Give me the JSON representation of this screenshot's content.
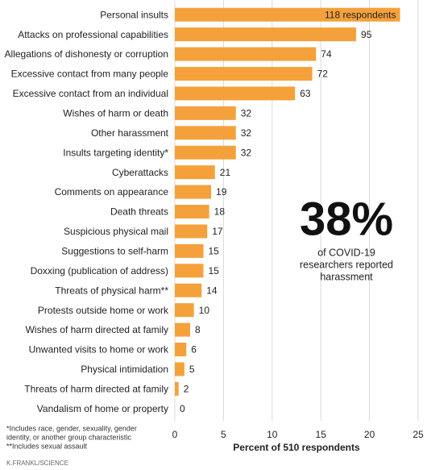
{
  "chart_data": {
    "type": "bar",
    "orientation": "horizontal",
    "categories": [
      "Personal insults",
      "Attacks on professional capabilities",
      "Allegations of dishonesty or corruption",
      "Excessive contact from many people",
      "Excessive contact from an individual",
      "Wishes of harm or death",
      "Other harassment",
      "Insults targeting identity*",
      "Cyberattacks",
      "Comments on appearance",
      "Death threats",
      "Suspicious physical mail",
      "Suggestions to self-harm",
      "Doxxing (publication of address)",
      "Threats of physical harm**",
      "Protests outside home or work",
      "Wishes of harm directed at family",
      "Unwanted visits to home or work",
      "Physical intimidation",
      "Threats of harm directed at family",
      "Vandalism of home or property"
    ],
    "values": [
      23.14,
      18.63,
      14.51,
      14.12,
      12.35,
      6.27,
      6.27,
      6.27,
      4.12,
      3.73,
      3.53,
      3.33,
      2.94,
      2.94,
      2.75,
      1.96,
      1.57,
      1.18,
      0.98,
      0.39,
      0
    ],
    "value_labels": [
      "118 respondents",
      "95",
      "74",
      "72",
      "63",
      "32",
      "32",
      "32",
      "21",
      "19",
      "18",
      "17",
      "15",
      "15",
      "14",
      "10",
      "8",
      "6",
      "5",
      "2",
      "0"
    ],
    "color": "#f5a13b",
    "xlim": [
      0,
      25
    ],
    "xticks": [
      0,
      5,
      10,
      15,
      20,
      25
    ],
    "xlabel": "Percent of 510 respondents",
    "grid": true,
    "annotation": {
      "headline": "38%",
      "lines": [
        "of COVID-19",
        "researchers reported",
        "harassment"
      ]
    },
    "footnotes": [
      "*Includes race, gender, sexuality, gender",
      "identity, or another group characteristic",
      "**Includes sexual assault"
    ],
    "credit": "K.FRANKL/SCIENCE"
  }
}
